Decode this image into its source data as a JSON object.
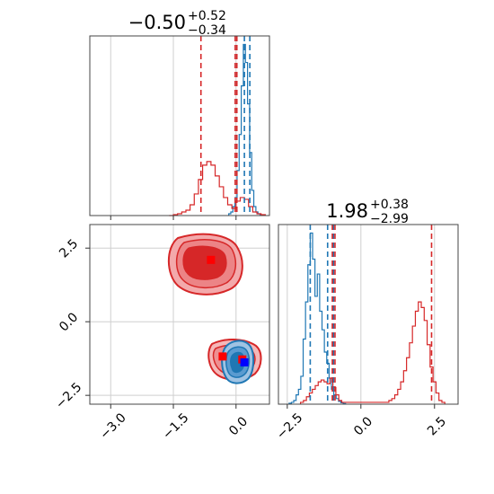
{
  "chart_data": [
    {
      "type": "histogram",
      "panel": "top-left marginal",
      "title_value": "−0.50",
      "title_plus": "+0.52",
      "title_minus": "−0.34",
      "xlim": [
        -3.5,
        0.8
      ],
      "ticks": [
        -3.0,
        -1.5,
        0.0
      ],
      "grid": true,
      "series": [
        {
          "color": "#1f77b4",
          "bin_width": 0.05,
          "x": [
            -0.15,
            -0.1,
            -0.05,
            0.0,
            0.05,
            0.1,
            0.15,
            0.2,
            0.25,
            0.3,
            0.35,
            0.4,
            0.45,
            0.5,
            0.55
          ],
          "y": [
            0.01,
            0.02,
            0.05,
            0.1,
            0.25,
            0.45,
            0.72,
            0.95,
            0.85,
            0.62,
            0.35,
            0.14,
            0.05,
            0.02,
            0.01
          ],
          "quantiles": [
            0.02,
            0.2,
            0.33
          ]
        },
        {
          "color": "#d62728",
          "bin_width": 0.1,
          "x": [
            -1.55,
            -1.45,
            -1.35,
            -1.25,
            -1.15,
            -1.05,
            -0.95,
            -0.85,
            -0.75,
            -0.65,
            -0.55,
            -0.45,
            -0.35,
            -0.25,
            -0.15,
            -0.05,
            0.05,
            0.15,
            0.25,
            0.35,
            0.45,
            0.55,
            0.65
          ],
          "y": [
            0.0,
            0.005,
            0.01,
            0.02,
            0.03,
            0.06,
            0.12,
            0.2,
            0.28,
            0.3,
            0.28,
            0.22,
            0.16,
            0.1,
            0.06,
            0.04,
            0.08,
            0.1,
            0.09,
            0.05,
            0.02,
            0.01,
            0.005
          ],
          "quantiles": [
            -0.84,
            -0.02,
            0.02
          ]
        }
      ]
    },
    {
      "type": "histogram",
      "panel": "bottom-right marginal",
      "title_value": "1.98",
      "title_plus": "+0.38",
      "title_minus": "−2.99",
      "xlim": [
        -2.8,
        3.3
      ],
      "ticks": [
        -2.5,
        0.0,
        2.5
      ],
      "grid": true,
      "series": [
        {
          "color": "#1f77b4",
          "bin_width": 0.08,
          "x": [
            -2.4,
            -2.32,
            -2.24,
            -2.16,
            -2.08,
            -2.0,
            -1.92,
            -1.84,
            -1.76,
            -1.68,
            -1.6,
            -1.52,
            -1.44,
            -1.36,
            -1.28,
            -1.2,
            -1.12,
            -1.04,
            -0.96,
            -0.88,
            -0.8,
            -0.72,
            -0.64,
            -0.56
          ],
          "y": [
            0.005,
            0.01,
            0.02,
            0.05,
            0.08,
            0.15,
            0.35,
            0.55,
            0.75,
            0.92,
            0.78,
            0.58,
            0.7,
            0.5,
            0.4,
            0.28,
            0.22,
            0.14,
            0.08,
            0.05,
            0.03,
            0.015,
            0.008,
            0.003
          ],
          "quantiles": [
            -1.72,
            -1.13,
            -0.93
          ]
        },
        {
          "color": "#d62728",
          "bin_width": 0.1,
          "x": [
            -2.0,
            -1.9,
            -1.8,
            -1.7,
            -1.6,
            -1.5,
            -1.4,
            -1.3,
            -1.2,
            -1.1,
            -1.0,
            -0.9,
            -0.8,
            -0.7,
            -0.6,
            0.9,
            1.0,
            1.1,
            1.2,
            1.3,
            1.4,
            1.5,
            1.6,
            1.7,
            1.8,
            1.9,
            2.0,
            2.1,
            2.2,
            2.3,
            2.4,
            2.5,
            2.6,
            2.7,
            2.8
          ],
          "y": [
            0.01,
            0.02,
            0.04,
            0.06,
            0.08,
            0.1,
            0.12,
            0.13,
            0.12,
            0.11,
            0.14,
            0.09,
            0.05,
            0.02,
            0.01,
            0.01,
            0.02,
            0.03,
            0.05,
            0.08,
            0.12,
            0.18,
            0.25,
            0.33,
            0.42,
            0.5,
            0.55,
            0.52,
            0.45,
            0.32,
            0.2,
            0.12,
            0.06,
            0.02,
            0.01
          ],
          "quantiles": [
            -0.97,
            -0.88,
            2.4
          ]
        }
      ]
    },
    {
      "type": "contour",
      "panel": "bottom-left joint",
      "xlim": [
        -3.5,
        0.8
      ],
      "ylim": [
        -2.8,
        3.3
      ],
      "xticks": [
        -3.0,
        -1.5,
        0.0
      ],
      "yticks": [
        -2.5,
        0.0,
        2.5
      ],
      "grid": true,
      "markers": [
        {
          "x": -0.6,
          "y": 2.1,
          "color": "#ff0000",
          "shape": "square"
        },
        {
          "x": -0.32,
          "y": -1.18,
          "color": "#ff0000",
          "shape": "square"
        },
        {
          "x": 0.15,
          "y": -1.28,
          "color": "#ff0000",
          "shape": "square"
        },
        {
          "x": 0.2,
          "y": -1.38,
          "color": "#0000ff",
          "shape": "square"
        }
      ]
    }
  ]
}
